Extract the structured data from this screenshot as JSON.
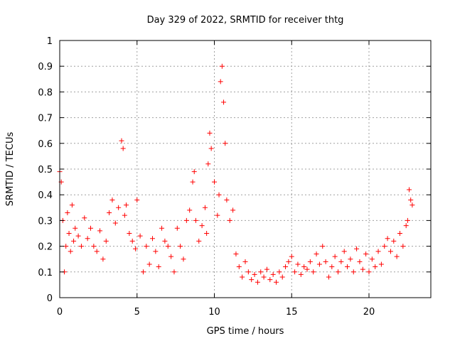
{
  "chart_data": {
    "type": "scatter",
    "title": "Day 329 of 2022, SRMTID for receiver thtg",
    "xlabel": "GPS time / hours",
    "ylabel": "SRMTID / TECUs",
    "xlim": [
      0,
      24
    ],
    "ylim": [
      0,
      1
    ],
    "xticks": [
      0,
      5,
      10,
      15,
      20
    ],
    "xtick_labels": [
      "0",
      "5",
      "10",
      "15",
      "20"
    ],
    "yticks": [
      0,
      0.1,
      0.2,
      0.3,
      0.4,
      0.5,
      0.6,
      0.7,
      0.8,
      0.9,
      1
    ],
    "ytick_labels": [
      "0",
      "0.1",
      "0.2",
      "0.3",
      "0.4",
      "0.5",
      "0.6",
      "0.7",
      "0.8",
      "0.9",
      "1"
    ],
    "grid": true,
    "marker": "+",
    "color": "#ff0000",
    "series": [
      {
        "name": "SRMTID",
        "x": [
          0.0,
          0.1,
          0.2,
          0.3,
          0.4,
          0.5,
          0.6,
          0.7,
          0.8,
          0.9,
          1.0,
          1.2,
          1.4,
          1.6,
          1.8,
          2.0,
          2.2,
          2.4,
          2.6,
          2.8,
          3.0,
          3.2,
          3.4,
          3.6,
          3.8,
          4.0,
          4.1,
          4.2,
          4.3,
          4.5,
          4.7,
          4.9,
          5.0,
          5.2,
          5.4,
          5.6,
          5.8,
          6.0,
          6.2,
          6.4,
          6.6,
          6.8,
          7.0,
          7.2,
          7.4,
          7.6,
          7.8,
          8.0,
          8.2,
          8.4,
          8.6,
          8.7,
          8.8,
          9.0,
          9.2,
          9.4,
          9.5,
          9.6,
          9.7,
          9.8,
          10.0,
          10.2,
          10.3,
          10.4,
          10.5,
          10.6,
          10.7,
          10.8,
          11.0,
          11.2,
          11.4,
          11.6,
          11.8,
          12.0,
          12.2,
          12.4,
          12.6,
          12.8,
          13.0,
          13.2,
          13.4,
          13.6,
          13.8,
          14.0,
          14.2,
          14.4,
          14.6,
          14.8,
          15.0,
          15.2,
          15.4,
          15.6,
          15.8,
          16.0,
          16.2,
          16.4,
          16.6,
          16.8,
          17.0,
          17.2,
          17.4,
          17.6,
          17.8,
          18.0,
          18.2,
          18.4,
          18.6,
          18.8,
          19.0,
          19.2,
          19.4,
          19.6,
          19.8,
          20.0,
          20.2,
          20.4,
          20.6,
          20.8,
          21.0,
          21.2,
          21.4,
          21.6,
          21.8,
          22.0,
          22.2,
          22.4,
          22.5,
          22.6,
          22.7,
          22.8
        ],
        "y": [
          0.49,
          0.45,
          0.3,
          0.1,
          0.2,
          0.33,
          0.25,
          0.18,
          0.36,
          0.22,
          0.27,
          0.24,
          0.2,
          0.31,
          0.23,
          0.27,
          0.2,
          0.18,
          0.26,
          0.15,
          0.22,
          0.33,
          0.38,
          0.29,
          0.35,
          0.61,
          0.58,
          0.32,
          0.36,
          0.25,
          0.22,
          0.19,
          0.38,
          0.24,
          0.1,
          0.2,
          0.13,
          0.23,
          0.18,
          0.12,
          0.27,
          0.22,
          0.2,
          0.16,
          0.1,
          0.27,
          0.2,
          0.15,
          0.3,
          0.34,
          0.45,
          0.49,
          0.3,
          0.22,
          0.28,
          0.35,
          0.25,
          0.52,
          0.64,
          0.58,
          0.45,
          0.32,
          0.4,
          0.84,
          0.9,
          0.76,
          0.6,
          0.38,
          0.3,
          0.34,
          0.17,
          0.12,
          0.08,
          0.14,
          0.1,
          0.07,
          0.09,
          0.06,
          0.1,
          0.08,
          0.11,
          0.07,
          0.09,
          0.06,
          0.1,
          0.08,
          0.12,
          0.14,
          0.16,
          0.1,
          0.13,
          0.09,
          0.12,
          0.11,
          0.14,
          0.1,
          0.17,
          0.13,
          0.2,
          0.14,
          0.08,
          0.12,
          0.16,
          0.1,
          0.14,
          0.18,
          0.12,
          0.15,
          0.1,
          0.19,
          0.14,
          0.11,
          0.17,
          0.1,
          0.15,
          0.12,
          0.18,
          0.13,
          0.2,
          0.23,
          0.18,
          0.22,
          0.16,
          0.25,
          0.2,
          0.28,
          0.3,
          0.42,
          0.38,
          0.36
        ]
      }
    ]
  }
}
